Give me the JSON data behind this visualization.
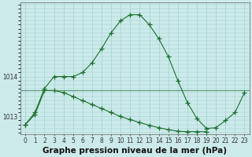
{
  "xlabel": "Graphe pression niveau de la mer (hPa)",
  "hours": [
    0,
    1,
    2,
    3,
    4,
    5,
    6,
    7,
    8,
    9,
    10,
    11,
    12,
    13,
    14,
    15,
    16,
    17,
    18,
    19,
    20,
    21,
    22,
    23
  ],
  "line1": [
    1012.8,
    1013.1,
    1013.7,
    1014.0,
    1014.0,
    1014.0,
    1014.1,
    1014.35,
    1014.7,
    1015.1,
    1015.4,
    1015.55,
    1015.55,
    1015.3,
    1014.95,
    1014.5,
    1013.9,
    1013.35,
    1012.95,
    1012.7,
    1012.72,
    1012.9,
    1013.1,
    1013.6
  ],
  "line2": [
    1012.8,
    1013.05,
    1013.65,
    1013.65,
    1013.6,
    1013.5,
    1013.4,
    1013.3,
    1013.2,
    1013.1,
    1013.0,
    1012.92,
    1012.85,
    1012.78,
    1012.72,
    1012.67,
    1012.63,
    1012.62,
    1012.62,
    1012.62,
    null,
    null,
    null,
    null
  ],
  "bg_color": "#cceaea",
  "line_color": "#1a6e2e",
  "ylim_min": 1012.55,
  "ylim_max": 1015.85,
  "yticks": [
    1013,
    1014
  ],
  "xticks": [
    0,
    1,
    2,
    3,
    4,
    5,
    6,
    7,
    8,
    9,
    10,
    11,
    12,
    13,
    14,
    15,
    16,
    17,
    18,
    19,
    20,
    21,
    22,
    23
  ],
  "tick_fontsize": 5.5,
  "xlabel_fontsize": 7.5,
  "grid_color": "#99cccc",
  "grid_major_color": "#888888"
}
